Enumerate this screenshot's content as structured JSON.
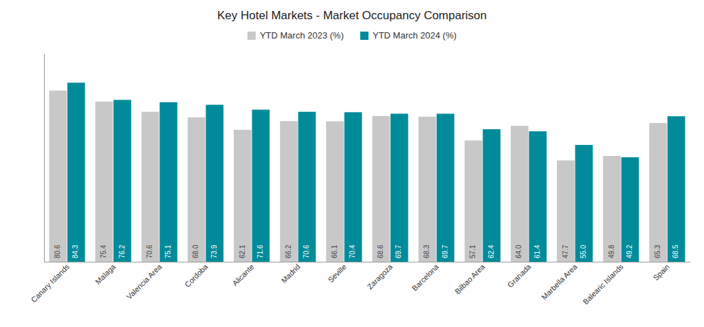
{
  "chart_data": {
    "type": "bar",
    "title": "Key Hotel Markets - Market Occupancy Comparison",
    "categories": [
      "Canary Islands",
      "Malaga",
      "Valencia Area",
      "Cordoba",
      "Alicante",
      "Madrid",
      "Seville",
      "Zaragoza",
      "Barcelona",
      "Bilbao Area",
      "Granada",
      "Marbella Area",
      "Balearic Islands",
      "Spain"
    ],
    "series": [
      {
        "name": "YTD March 2023 (%)",
        "color": "#c8c8c8",
        "values": [
          80.6,
          75.4,
          70.6,
          68.0,
          62.1,
          66.2,
          66.1,
          68.6,
          68.3,
          57.1,
          64.0,
          47.7,
          49.8,
          65.3
        ],
        "value_labels": [
          "80.6",
          "75.4",
          "70.6",
          "68.0",
          "62.1",
          "66.2",
          "66.1",
          "68.6",
          "68.3",
          "57.1",
          "64.0",
          "47.7",
          "49.8",
          "65.3"
        ]
      },
      {
        "name": "YTD March 2024 (%)",
        "color": "#008B9B",
        "values": [
          84.3,
          76.2,
          75.1,
          73.9,
          71.6,
          70.6,
          70.4,
          69.7,
          69.7,
          62.4,
          61.4,
          55.0,
          49.2,
          68.5
        ],
        "value_labels": [
          "84.3",
          "76.2",
          "75.1",
          "73.9",
          "71.6",
          "70.6",
          "70.4",
          "69.7",
          "69.7",
          "62.4",
          "61.4",
          "55.0",
          "49.2",
          "68.5"
        ]
      }
    ],
    "ylim": [
      0,
      98
    ],
    "data_labels": true,
    "tick_labels": "x",
    "grid": false,
    "legend": "top"
  }
}
